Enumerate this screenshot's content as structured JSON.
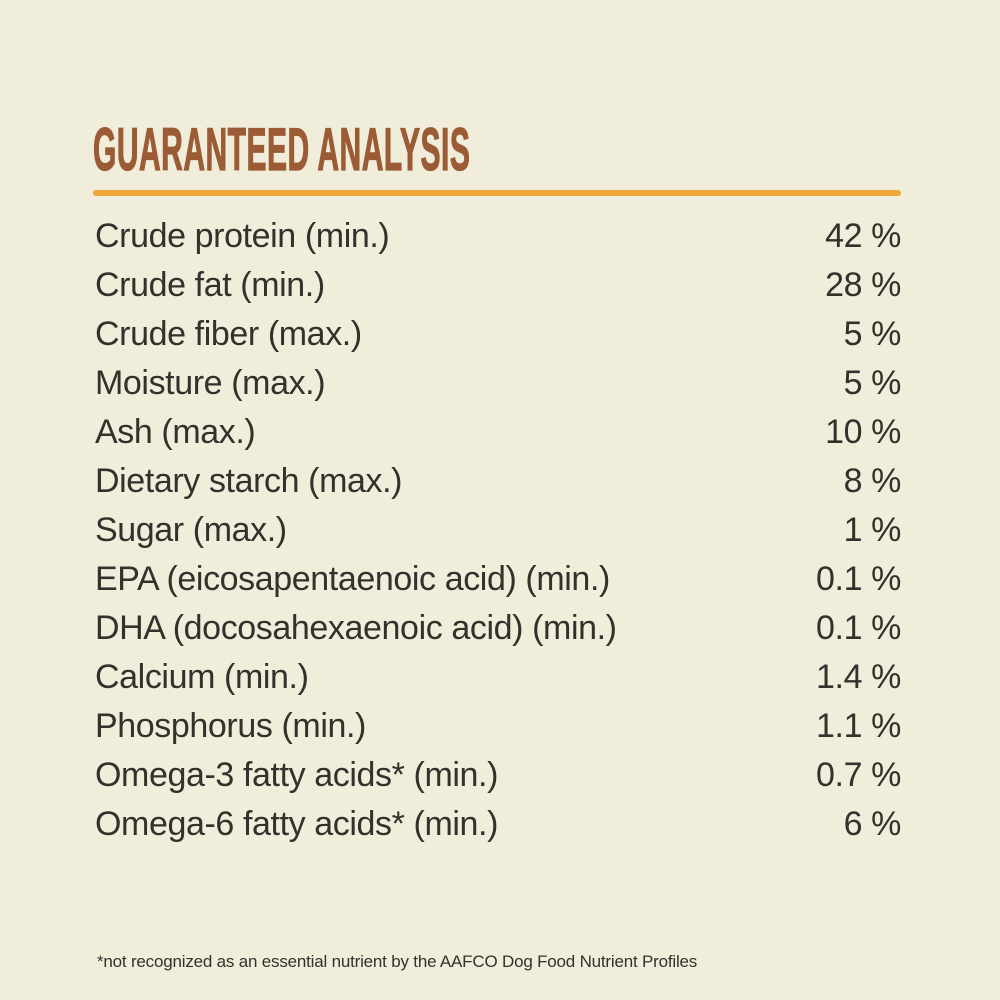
{
  "label": {
    "title": "GUARANTEED ANALYSIS",
    "footnote": "*not recognized as an essential nutrient by the AAFCO Dog Food Nutrient Profiles",
    "rows": [
      {
        "label": "Crude protein (min.)",
        "value": "42 %"
      },
      {
        "label": "Crude fat (min.)",
        "value": "28 %"
      },
      {
        "label": "Crude fiber (max.)",
        "value": "5 %"
      },
      {
        "label": "Moisture (max.)",
        "value": "5 %"
      },
      {
        "label": "Ash (max.)",
        "value": "10 %"
      },
      {
        "label": "Dietary starch (max.)",
        "value": "8 %"
      },
      {
        "label": "Sugar (max.)",
        "value": "1 %"
      },
      {
        "label": "EPA (eicosapentaenoic acid) (min.)",
        "value": "0.1 %"
      },
      {
        "label": "DHA (docosahexaenoic acid) (min.)",
        "value": "0.1 %"
      },
      {
        "label": "Calcium (min.)",
        "value": "1.4 %"
      },
      {
        "label": "Phosphorus (min.)",
        "value": "1.1 %"
      },
      {
        "label": "Omega-3 fatty acids* (min.)",
        "value": "0.7 %"
      },
      {
        "label": "Omega-6 fatty acids* (min.)",
        "value": "6 %"
      }
    ]
  },
  "colors": {
    "background": "#f0eedb",
    "title_brown": "#9b5b34",
    "divider_orange": "#eea636",
    "body_text": "#32312c"
  }
}
